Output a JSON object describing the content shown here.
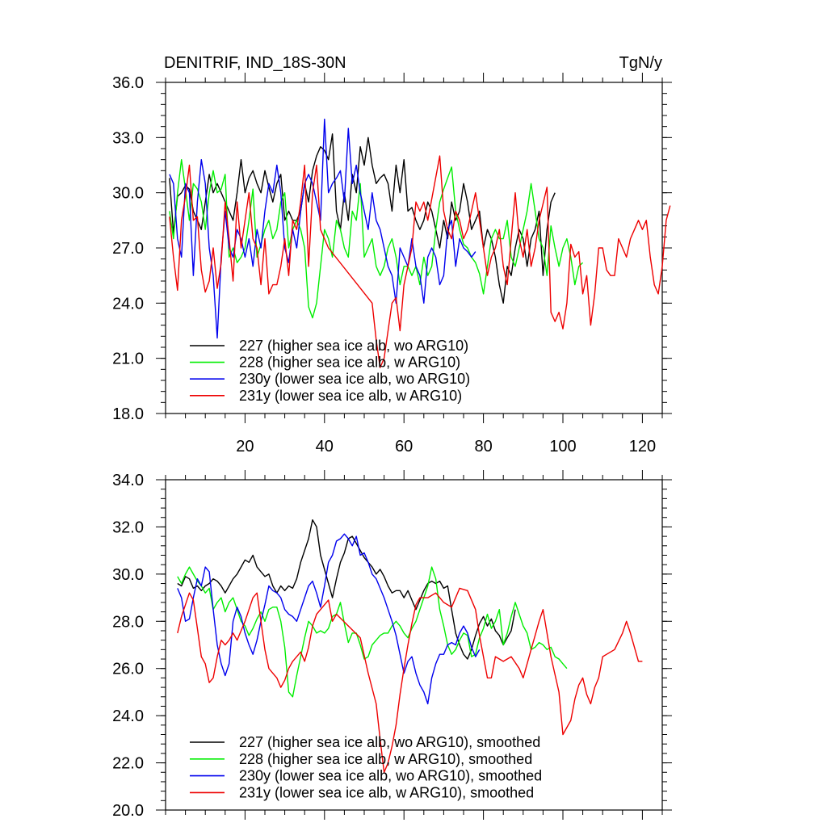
{
  "chart_data": [
    {
      "type": "line",
      "title": "DENITRIF, IND_18S-30N",
      "units": "TgN/y",
      "xlabel": "",
      "ylabel": "",
      "xlim": [
        0,
        125
      ],
      "ylim": [
        18,
        36
      ],
      "yticks": [
        "18.0",
        "21.0",
        "24.0",
        "27.0",
        "30.0",
        "33.0",
        "36.0"
      ],
      "xticks": [
        "20",
        "40",
        "60",
        "80",
        "100",
        "120"
      ],
      "legend_position": "bottom-left",
      "series": [
        {
          "name": "227 (higher sea ice alb, wo ARG10)",
          "color": "#000000",
          "x_start": 1,
          "values": [
            30.8,
            27.8,
            29.8,
            30.0,
            30.4,
            30.2,
            29.0,
            28.5,
            28.0,
            29.5,
            31.0,
            30.0,
            30.5,
            30.0,
            29.5,
            29.0,
            28.5,
            30.0,
            31.8,
            30.0,
            30.8,
            31.2,
            30.5,
            30.0,
            31.2,
            30.3,
            29.5,
            30.5,
            31.0,
            28.5,
            29.0,
            28.5,
            28.5,
            29.0,
            30.5,
            29.5,
            31.2,
            32.0,
            32.5,
            32.3,
            31.8,
            33.2,
            29.0,
            28.0,
            30.0,
            28.5,
            31.0,
            30.0,
            32.5,
            31.5,
            33.0,
            31.5,
            30.5,
            30.8,
            31.0,
            30.5,
            29.0,
            31.5,
            30.0,
            31.8,
            29.0,
            29.2,
            28.5,
            28.0,
            28.5,
            29.5,
            29.0,
            28.0,
            27.0,
            28.5,
            27.5,
            29.5,
            28.5,
            29.0,
            30.5,
            29.5,
            28.0,
            28.5,
            29.0,
            27.0,
            28.0,
            27.5,
            26.5,
            25.0,
            24.0,
            26.0,
            25.5,
            27.0,
            28.0,
            27.5,
            26.0,
            27.5,
            28.0,
            29.0,
            25.5,
            28.0,
            29.5,
            30.0
          ]
        },
        {
          "name": "228 (higher sea ice alb, w ARG10)",
          "color": "#00ee00",
          "x_start": 1,
          "values": [
            29.0,
            27.5,
            30.0,
            31.8,
            30.2,
            28.5,
            30.5,
            30.2,
            29.5,
            28.0,
            30.0,
            31.2,
            30.0,
            30.2,
            31.0,
            26.5,
            27.0,
            26.2,
            26.5,
            27.0,
            28.5,
            30.2,
            26.5,
            27.2,
            28.0,
            28.5,
            27.5,
            28.0,
            29.5,
            30.0,
            27.0,
            28.0,
            28.5,
            28.0,
            27.0,
            23.8,
            23.2,
            24.0,
            26.0,
            28.0,
            27.5,
            26.5,
            28.5,
            28.0,
            27.0,
            26.5,
            29.0,
            28.5,
            30.5,
            26.5,
            27.0,
            27.5,
            26.0,
            25.5,
            26.0,
            27.0,
            27.5,
            26.5,
            25.0,
            26.0,
            26.0,
            25.5,
            26.0,
            25.0,
            26.5,
            25.5,
            26.0,
            28.0,
            29.5,
            30.2,
            30.8,
            31.4,
            29.0,
            28.0,
            27.2,
            27.0,
            26.5,
            26.2,
            25.6,
            24.5,
            26.0,
            27.5,
            28.0,
            27.5,
            27.5,
            28.5,
            26.5,
            26.0,
            27.0,
            28.0,
            29.0,
            30.5,
            29.0,
            27.5,
            27.0,
            25.5,
            28.2,
            27.0,
            26.0,
            27.0,
            27.5,
            26.5,
            25.0,
            26.0,
            26.2
          ]
        },
        {
          "name": "230y (lower sea ice alb, wo ARG10)",
          "color": "#0000ee",
          "x_start": 1,
          "values": [
            31.0,
            30.5,
            27.5,
            26.5,
            30.5,
            30.0,
            25.5,
            29.5,
            31.8,
            30.5,
            27.0,
            25.5,
            22.1,
            26.5,
            29.0,
            27.0,
            26.5,
            28.0,
            27.5,
            26.5,
            27.5,
            26.0,
            28.0,
            27.0,
            29.0,
            30.5,
            30.0,
            31.5,
            30.0,
            27.0,
            26.2,
            28.0,
            27.0,
            29.0,
            30.5,
            31.0,
            30.5,
            29.5,
            28.5,
            34.0,
            30.0,
            30.5,
            30.8,
            31.2,
            29.5,
            33.5,
            30.5,
            31.5,
            30.0,
            29.0,
            28.0,
            30.0,
            28.5,
            28.0,
            27.0,
            26.0,
            25.5,
            24.0,
            27.0,
            26.5,
            26.0,
            27.5,
            26.0,
            25.5,
            24.0,
            26.5,
            27.0,
            26.5,
            25.0,
            25.5,
            28.0,
            28.5,
            26.0,
            27.5,
            27.0,
            26.8,
            26.5,
            26.8
          ]
        },
        {
          "name": "231y (lower sea ice alb, w ARG10)",
          "color": "#ee0000",
          "x_start": 1,
          "values": [
            28.7,
            26.5,
            24.7,
            28.5,
            29.8,
            31.5,
            28.5,
            28.7,
            25.8,
            24.6,
            25.2,
            27.0,
            24.8,
            26.2,
            29.5,
            27.5,
            25.2,
            29.5,
            27.0,
            28.5,
            30.0,
            27.5,
            27.0,
            25.0,
            27.5,
            24.5,
            25.0,
            25.0,
            26.0,
            27.5,
            25.5,
            28.5,
            28.0,
            29.5,
            31.5,
            26.0,
            30.0,
            31.5,
            28.0,
            27.5,
            27.0,
            24.0,
            22.0,
            20.5,
            21.0,
            24.0,
            24.3,
            22.5,
            25.0,
            26.0,
            27.0,
            29.5,
            29.0,
            29.5,
            28.5,
            32.0,
            29.0,
            28.0,
            27.5,
            29.0,
            28.5,
            27.5,
            28.0,
            29.0,
            30.0,
            28.5,
            27.0,
            25.5,
            26.5,
            27.0,
            28.0,
            26.0,
            25.0,
            27.5,
            30.0,
            27.5,
            26.5,
            28.0,
            26.0,
            27.0,
            28.5,
            30.3,
            23.5,
            23.0,
            23.5,
            22.6,
            24.0,
            27.2,
            26.5,
            26.8,
            24.5,
            25.5,
            22.8,
            24.5,
            27.0,
            27.0,
            25.8,
            25.5,
            25.5,
            27.5,
            27.0,
            26.5,
            27.5,
            28.0,
            28.5,
            28.0,
            28.5,
            26.5,
            25.0,
            24.5,
            26.0,
            28.5,
            29.3
          ],
          "x_values_override": [
            1,
            2,
            3,
            4,
            5,
            6,
            7,
            8,
            9,
            10,
            11,
            12,
            13,
            14,
            15,
            16,
            17,
            18,
            19,
            20,
            21,
            22,
            23,
            24,
            25,
            26,
            27,
            28,
            29,
            30,
            31,
            32,
            33,
            34,
            35,
            36,
            37,
            38,
            39,
            40,
            41,
            52,
            53,
            54,
            55,
            57,
            58,
            59,
            60,
            61,
            62,
            63,
            64,
            65,
            66,
            69,
            70,
            71,
            72,
            73,
            74,
            75,
            76,
            77,
            78,
            79,
            80,
            81,
            82,
            83,
            84,
            85,
            86,
            87,
            88,
            89,
            90,
            91,
            92,
            93,
            94,
            96,
            97,
            98,
            99,
            100,
            101,
            102,
            103,
            104,
            105,
            106,
            107,
            108,
            109,
            110,
            111,
            112,
            113,
            114,
            115,
            116,
            117,
            118,
            119,
            120,
            121,
            122,
            123,
            124,
            125,
            126,
            127
          ]
        }
      ]
    },
    {
      "type": "line",
      "title": "",
      "xlabel": "",
      "ylabel": "",
      "xlim": [
        0,
        125
      ],
      "ylim": [
        20,
        34
      ],
      "yticks": [
        "20.0",
        "22.0",
        "24.0",
        "26.0",
        "28.0",
        "30.0",
        "32.0",
        "34.0"
      ],
      "legend_position": "bottom-left",
      "series": [
        {
          "name": "227 (higher sea ice alb, wo ARG10), smoothed",
          "color": "#000000",
          "x_start": 3,
          "values": [
            29.6,
            29.5,
            29.9,
            29.8,
            29.4,
            29.5,
            29.3,
            29.5,
            29.6,
            29.8,
            29.7,
            29.5,
            29.2,
            29.5,
            29.8,
            30.0,
            30.3,
            30.6,
            30.5,
            30.8,
            30.3,
            30.1,
            29.9,
            30.0,
            29.5,
            29.2,
            29.5,
            29.3,
            29.5,
            29.4,
            29.8,
            30.5,
            31.0,
            31.5,
            32.3,
            32.0,
            30.8,
            30.2,
            29.6,
            29.0,
            29.8,
            30.5,
            30.9,
            31.5,
            31.6,
            31.3,
            31.0,
            30.7,
            30.5,
            30.3,
            30.0,
            30.2,
            29.9,
            29.5,
            29.2,
            29.3,
            29.3,
            29.0,
            29.3,
            28.9,
            28.5,
            28.9,
            29.3,
            29.6,
            29.7,
            29.6,
            29.7,
            29.4,
            29.5,
            28.5,
            27.5,
            27.0,
            26.6,
            26.4,
            26.8,
            27.4,
            27.9,
            28.2,
            27.8,
            28.1,
            27.6,
            27.4,
            27.0,
            27.3,
            27.6,
            28.5
          ]
        },
        {
          "name": "228 (higher sea ice alb, w ARG10), smoothed",
          "color": "#00ee00",
          "x_start": 3,
          "values": [
            29.9,
            29.6,
            30.0,
            30.3,
            30.0,
            29.7,
            29.5,
            29.2,
            29.4,
            28.5,
            28.8,
            29.0,
            28.4,
            28.8,
            29.0,
            28.5,
            28.0,
            27.8,
            27.4,
            27.7,
            28.1,
            28.4,
            28.0,
            28.5,
            28.6,
            28.6,
            28.0,
            26.9,
            25.0,
            24.8,
            25.7,
            26.5,
            27.3,
            28.0,
            27.8,
            27.5,
            27.6,
            27.5,
            27.7,
            28.2,
            28.3,
            28.8,
            27.9,
            27.1,
            27.5,
            27.5,
            27.0,
            26.4,
            26.5,
            27.0,
            27.2,
            27.4,
            27.5,
            27.5,
            27.8,
            28.0,
            27.8,
            27.5,
            27.3,
            27.7,
            28.0,
            28.5,
            29.0,
            29.5,
            30.3,
            29.8,
            28.5,
            27.8,
            27.0,
            26.6,
            26.8,
            27.2,
            27.5,
            27.4,
            26.5,
            26.6,
            27.3,
            27.7,
            28.3,
            27.7,
            28.0,
            28.5,
            27.0,
            27.5,
            28.2,
            28.8,
            28.3,
            27.8,
            27.5,
            26.8,
            26.9,
            27.1,
            27.0,
            26.8,
            26.9,
            26.5,
            26.4,
            26.2,
            26.0
          ]
        },
        {
          "name": "230y (lower sea ice alb, wo ARG10), smoothed",
          "color": "#0000ee",
          "x_start": 3,
          "values": [
            29.4,
            29.0,
            28.0,
            28.1,
            29.0,
            29.8,
            29.5,
            30.3,
            30.1,
            28.5,
            27.0,
            26.2,
            25.7,
            26.2,
            28.0,
            28.6,
            28.2,
            27.5,
            27.0,
            26.6,
            27.2,
            28.0,
            28.7,
            29.5,
            29.3,
            29.2,
            29.0,
            28.5,
            28.3,
            28.2,
            28.0,
            28.5,
            29.0,
            29.5,
            29.7,
            29.2,
            28.6,
            29.5,
            30.5,
            30.8,
            31.4,
            31.5,
            31.7,
            31.5,
            31.2,
            31.6,
            30.8,
            30.9,
            30.5,
            30.0,
            29.8,
            29.4,
            29.0,
            28.5,
            28.0,
            27.4,
            26.6,
            25.8,
            26.3,
            26.5,
            25.8,
            25.3,
            25.0,
            24.5,
            25.6,
            26.2,
            26.6,
            26.6,
            27.0,
            27.1,
            27.0,
            27.5,
            27.8,
            27.5,
            26.9,
            26.5,
            26.8
          ]
        },
        {
          "name": "231y (lower sea ice alb, w ARG10), smoothed",
          "color": "#ee0000",
          "x_start": 3,
          "values": [
            27.5,
            28.2,
            28.7,
            29.2,
            28.9,
            27.7,
            26.5,
            26.2,
            25.4,
            25.6,
            26.5,
            27.2,
            27.0,
            27.2,
            27.5,
            27.2,
            27.6,
            28.0,
            28.5,
            29.0,
            29.2,
            28.0,
            26.8,
            26.0,
            25.8,
            25.6,
            25.2,
            25.5,
            26.0,
            26.3,
            26.5,
            26.7,
            26.3,
            26.9,
            27.8,
            28.3,
            28.5,
            28.7,
            28.9,
            28.0,
            28.3,
            27.3,
            25.8,
            24.5,
            23.0,
            21.6,
            22.0,
            22.7,
            23.6,
            24.9,
            26.0,
            27.0,
            27.9,
            28.7,
            29.0,
            29.0,
            29.2,
            28.8,
            28.6,
            29.4,
            29.3,
            28.5,
            27.4,
            26.5,
            25.6,
            25.6,
            26.5,
            26.3,
            26.5,
            26.0,
            25.6,
            26.2,
            26.8,
            27.4,
            28.0,
            28.5,
            26.5,
            25.0,
            23.2,
            23.8,
            24.7,
            25.3,
            25.6,
            24.9,
            24.5,
            25.2,
            25.6,
            26.5,
            26.6,
            26.8,
            27.5,
            28.0,
            27.5,
            26.3,
            26.3
          ],
          "x_values_override": [
            3,
            4,
            5,
            6,
            7,
            8,
            9,
            10,
            11,
            12,
            13,
            14,
            15,
            16,
            17,
            18,
            19,
            20,
            21,
            22,
            23,
            24,
            25,
            26,
            27,
            28,
            29,
            30,
            31,
            32,
            33,
            34,
            35,
            36,
            37,
            38,
            39,
            40,
            41,
            42,
            43,
            49,
            51,
            53,
            54,
            55,
            56,
            57,
            58,
            59,
            60,
            61,
            62,
            63,
            64,
            66,
            68,
            70,
            72,
            74,
            76,
            78,
            79,
            80,
            81,
            82,
            83,
            85,
            87,
            89,
            90,
            91,
            92,
            93,
            94,
            95,
            97,
            99,
            100,
            102,
            103,
            104,
            105,
            106,
            107,
            108,
            109,
            110,
            111,
            113,
            115,
            116,
            117,
            119,
            120
          ]
        }
      ]
    }
  ]
}
